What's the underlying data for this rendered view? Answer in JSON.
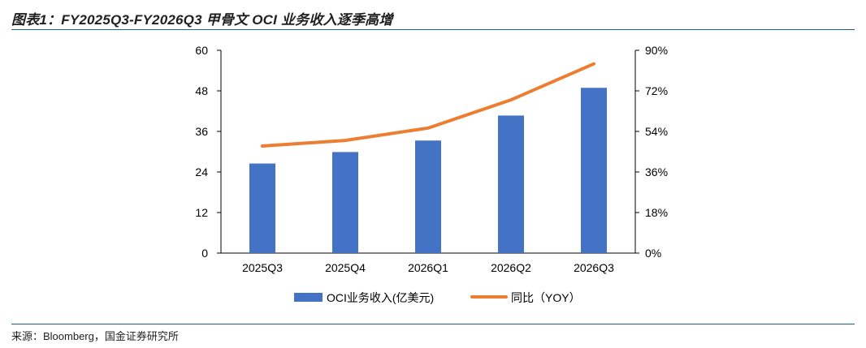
{
  "figure": {
    "title": "图表1：FY2025Q3-FY2026Q3 甲骨文 OCI 业务收入逐季高增",
    "source": "来源：Bloomberg，国金证券研究所"
  },
  "chart_data": {
    "type": "bar",
    "categories": [
      "2025Q3",
      "2025Q4",
      "2026Q1",
      "2026Q2",
      "2026Q3"
    ],
    "series": [
      {
        "name": "OCI业务收入(亿美元)",
        "type": "bar",
        "axis": "left",
        "color": "#4472C4",
        "values": [
          26.5,
          29.9,
          33.3,
          40.7,
          48.9
        ]
      },
      {
        "name": "同比（YOY）",
        "type": "line",
        "axis": "right",
        "color": "#ED7D31",
        "values": [
          47.5,
          50,
          55.5,
          68,
          84
        ]
      }
    ],
    "y_left": {
      "ylim": [
        0,
        60
      ],
      "ticks": [
        "0",
        "12",
        "24",
        "36",
        "48",
        "60"
      ]
    },
    "y_right": {
      "ylim": [
        0,
        90
      ],
      "ticks": [
        "0%",
        "18%",
        "36%",
        "54%",
        "72%",
        "90%"
      ]
    },
    "grid": false,
    "legend_position": "bottom"
  }
}
